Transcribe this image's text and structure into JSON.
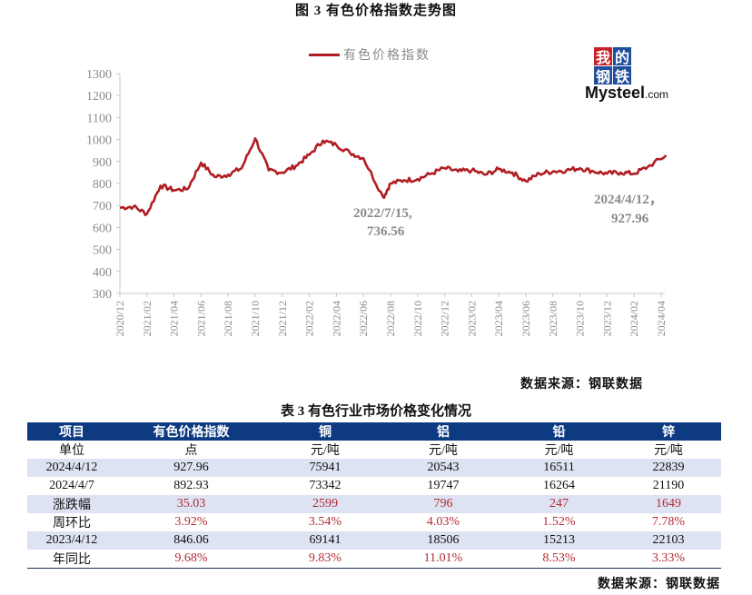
{
  "figure": {
    "title": "图 3  有色价格指数走势图",
    "source": "数据来源：钢联数据"
  },
  "logo": {
    "chars": [
      "我",
      "的",
      "钢",
      "铁"
    ],
    "text_big": "Mysteel",
    "text_small": ".com"
  },
  "chart_data": {
    "type": "line",
    "title": "图 3  有色价格指数走势图",
    "xlabel": "",
    "ylabel": "",
    "ylim": [
      300,
      1300
    ],
    "yticks": [
      1300,
      1200,
      1100,
      1000,
      900,
      800,
      700,
      600,
      500,
      400,
      300
    ],
    "xticks": [
      "2020/12",
      "2021/02",
      "2021/04",
      "2021/06",
      "2021/08",
      "2021/10",
      "2021/12",
      "2022/02",
      "2022/04",
      "2022/06",
      "2022/08",
      "2022/10",
      "2022/12",
      "2023/02",
      "2023/04",
      "2023/06",
      "2023/08",
      "2023/10",
      "2023/12",
      "2024/02",
      "2024/04"
    ],
    "grid": false,
    "legend_position": "top",
    "series": [
      {
        "name": "有色价格指数",
        "color": "#b01e23",
        "x": [
          "2020/12",
          "2021/01",
          "2021/02",
          "2021/03",
          "2021/04",
          "2021/05",
          "2021/06",
          "2021/07",
          "2021/08",
          "2021/09",
          "2021/10",
          "2021/11",
          "2021/12",
          "2022/01",
          "2022/02",
          "2022/03",
          "2022/04",
          "2022/05",
          "2022/06",
          "2022/07/15",
          "2022/08",
          "2022/09",
          "2022/10",
          "2022/11",
          "2022/12",
          "2023/01",
          "2023/02",
          "2023/03",
          "2023/04",
          "2023/05",
          "2023/06",
          "2023/07",
          "2023/08",
          "2023/09",
          "2023/10",
          "2023/11",
          "2023/12",
          "2024/01",
          "2024/02",
          "2024/03",
          "2024/04/12"
        ],
        "values": [
          690,
          695,
          662,
          790,
          770,
          775,
          895,
          830,
          840,
          870,
          1005,
          860,
          850,
          880,
          930,
          995,
          975,
          940,
          915,
          736.56,
          800,
          815,
          820,
          845,
          870,
          855,
          860,
          840,
          865,
          850,
          810,
          845,
          855,
          860,
          870,
          855,
          845,
          850,
          845,
          875,
          927.96
        ]
      }
    ],
    "annotations": [
      {
        "text": "2022/7/15,\n736.56",
        "x": "2022/07/15",
        "y": 736.56
      },
      {
        "text": "2024/4/12，\n927.96",
        "x": "2024/04/12",
        "y": 927.96
      }
    ]
  },
  "annotations": {
    "low_line1": "2022/7/15,",
    "low_line2": "736.56",
    "last_line1": "2024/4/12，",
    "last_line2": "927.96"
  },
  "table": {
    "title": "表 3 有色行业市场价格变化情况",
    "headers": [
      "项目",
      "有色价格指数",
      "铜",
      "铝",
      "铅",
      "锌"
    ],
    "rows": [
      {
        "label": "单位",
        "values": [
          "点",
          "元/吨",
          "元/吨",
          "元/吨",
          "元/吨"
        ],
        "shade": false,
        "red": false
      },
      {
        "label": "2024/4/12",
        "values": [
          "927.96",
          "75941",
          "20543",
          "16511",
          "22839"
        ],
        "shade": true,
        "red": false
      },
      {
        "label": "2024/4/7",
        "values": [
          "892.93",
          "73342",
          "19747",
          "16264",
          "21190"
        ],
        "shade": false,
        "red": false
      },
      {
        "label": "涨跌幅",
        "values": [
          "35.03",
          "2599",
          "796",
          "247",
          "1649"
        ],
        "shade": true,
        "red": true
      },
      {
        "label": "周环比",
        "values": [
          "3.92%",
          "3.54%",
          "4.03%",
          "1.52%",
          "7.78%"
        ],
        "shade": false,
        "red": true
      },
      {
        "label": "2023/4/12",
        "values": [
          "846.06",
          "69141",
          "18506",
          "15213",
          "22103"
        ],
        "shade": true,
        "red": false
      },
      {
        "label": "年同比",
        "values": [
          "9.68%",
          "9.83%",
          "11.01%",
          "8.53%",
          "3.33%"
        ],
        "shade": false,
        "red": true
      }
    ],
    "source": "数据来源：钢联数据"
  }
}
